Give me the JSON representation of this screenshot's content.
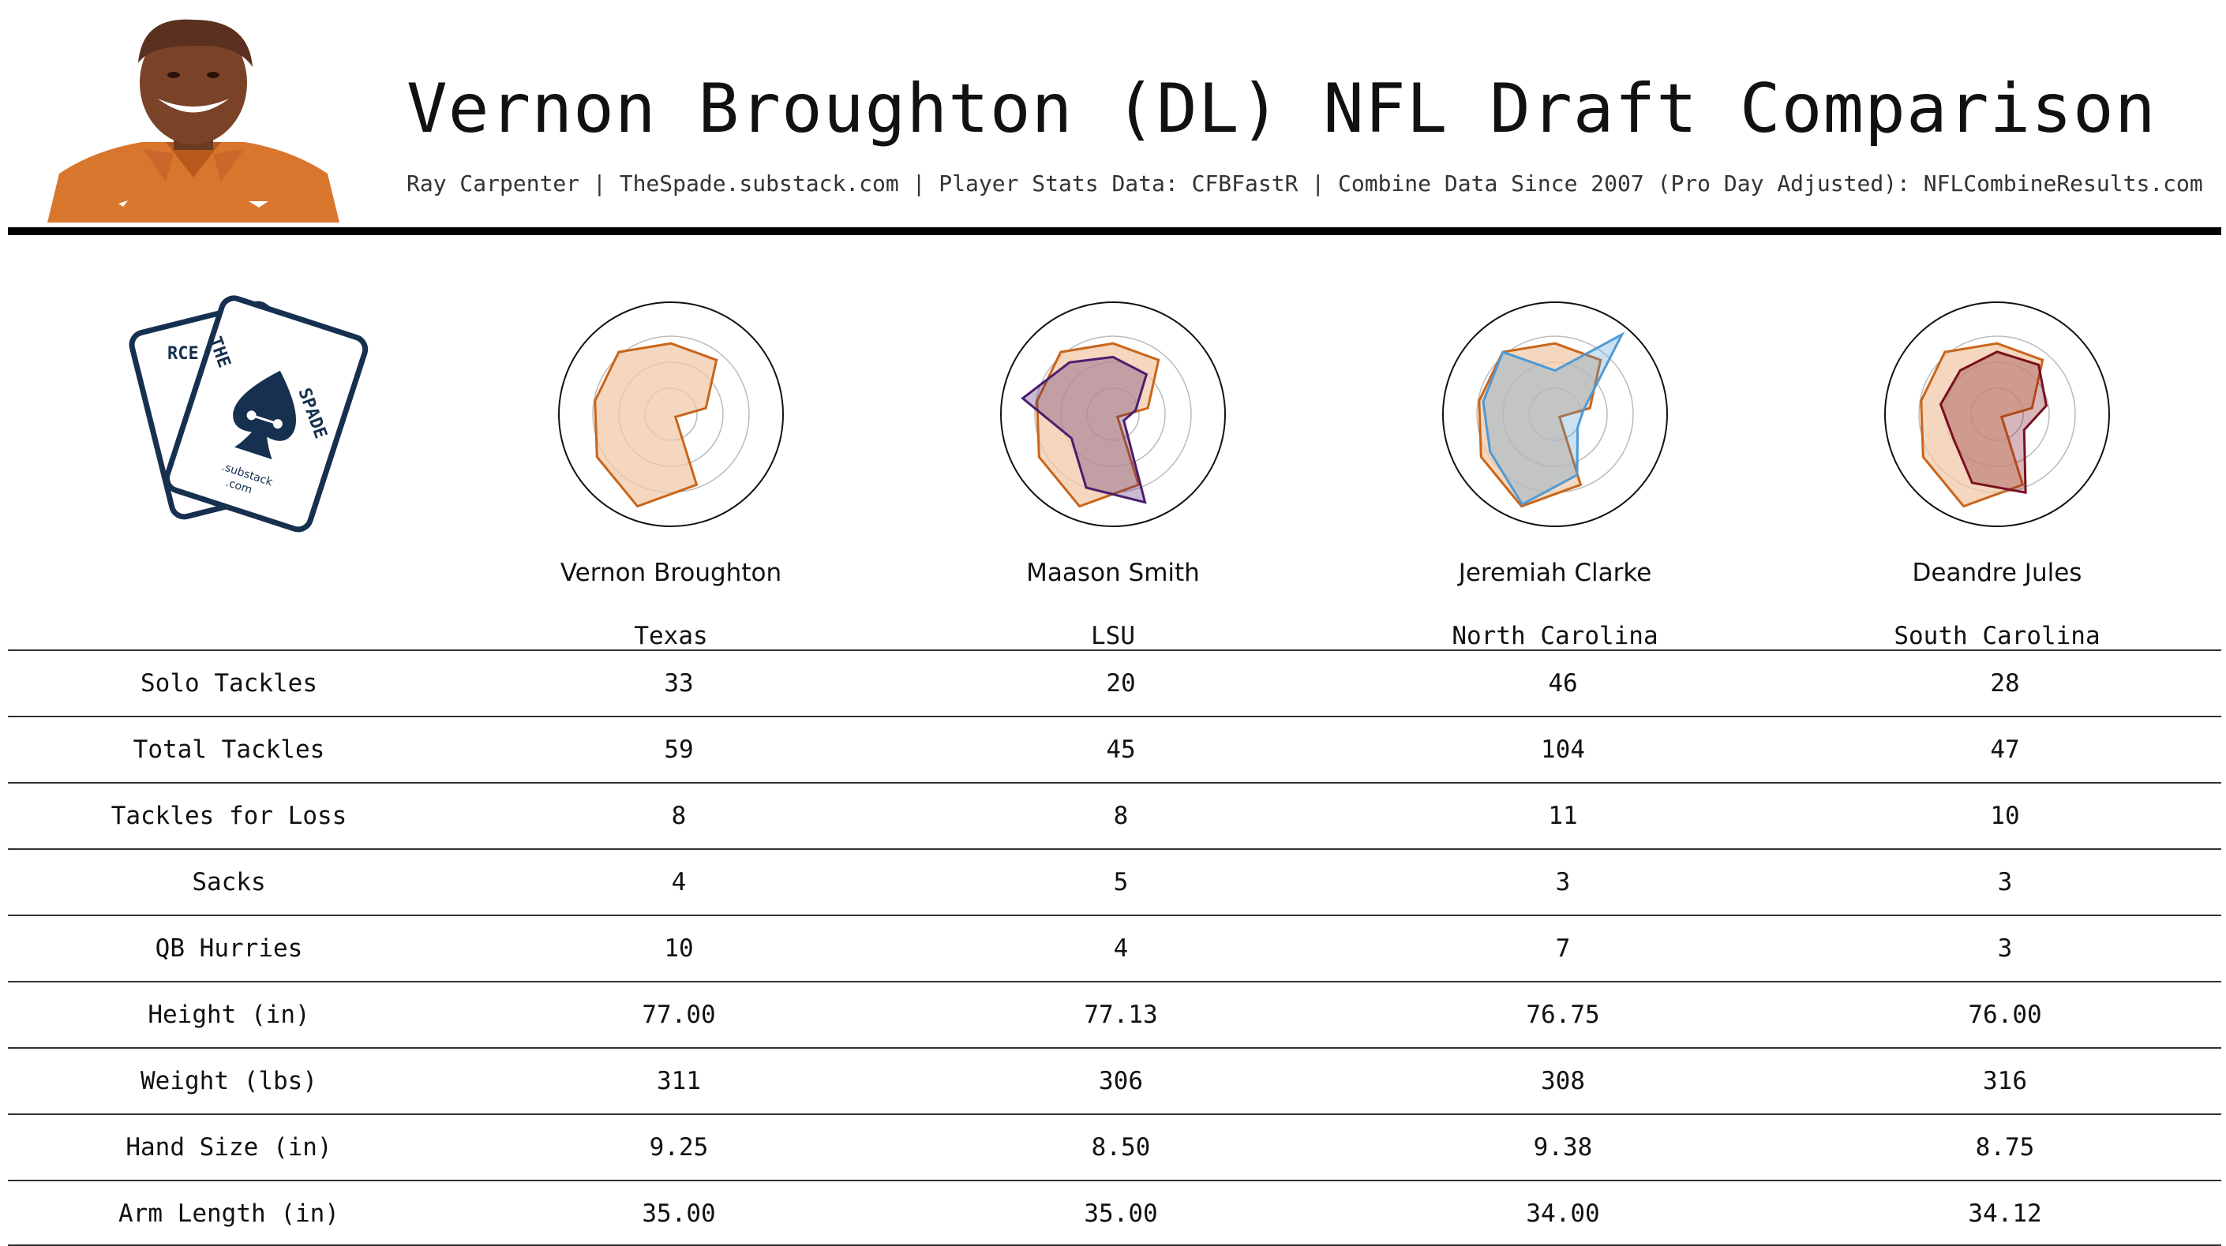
{
  "header": {
    "title": "Vernon Broughton (DL) NFL Draft Comparison",
    "subtitle": "Ray Carpenter | TheSpade.substack.com | Player Stats Data: CFBFastR | Combine Data Since 2007 (Pro Day Adjusted): NFLCombineResults.com",
    "photo_icon": "player-headshot",
    "logo_icon": "the-spade-playing-cards-logo"
  },
  "logo": {
    "text_left": "RCE",
    "text_top": "THE",
    "text_right": "SPADE",
    "text_small": ".substack",
    "text_com": ".com"
  },
  "colors": {
    "base": "#c8651b",
    "base_fill": "#f0c9a8",
    "maason": "#4b1e6e",
    "jeremiah": "#4f9ad4",
    "deandre": "#7a1020",
    "grid": "#bbbbbb"
  },
  "players": [
    {
      "name": "Vernon Broughton",
      "school": "Texas"
    },
    {
      "name": "Maason Smith",
      "school": "LSU"
    },
    {
      "name": "Jeremiah Clarke",
      "school": "North Carolina"
    },
    {
      "name": "Deandre Jules",
      "school": "South Carolina"
    }
  ],
  "table": {
    "rows": [
      {
        "label": "Solo Tackles",
        "values": [
          "33",
          "20",
          "46",
          "28"
        ]
      },
      {
        "label": "Total Tackles",
        "values": [
          "59",
          "45",
          "104",
          "47"
        ]
      },
      {
        "label": "Tackles for Loss",
        "values": [
          "8",
          "8",
          "11",
          "10"
        ]
      },
      {
        "label": "Sacks",
        "values": [
          "4",
          "5",
          "3",
          "3"
        ]
      },
      {
        "label": "QB Hurries",
        "values": [
          "10",
          "4",
          "7",
          "3"
        ]
      },
      {
        "label": "Height (in)",
        "values": [
          "77.00",
          "77.13",
          "76.75",
          "76.00"
        ]
      },
      {
        "label": "Weight (lbs)",
        "values": [
          "311",
          "306",
          "308",
          "316"
        ]
      },
      {
        "label": "Hand Size (in)",
        "values": [
          "9.25",
          "8.50",
          "9.38",
          "8.75"
        ]
      },
      {
        "label": "Arm Length (in)",
        "values": [
          "35.00",
          "35.00",
          "34.00",
          "34.12"
        ]
      }
    ]
  },
  "radar_data": {
    "axes": 9,
    "base": [
      0.68,
      0.68,
      0.34,
      0.05,
      0.72,
      0.94,
      0.82,
      0.74,
      0.78
    ],
    "comparisons": [
      [
        0.55,
        0.5,
        0.22,
        0.12,
        0.9,
        0.75,
        0.46,
        0.88,
        0.65
      ],
      [
        0.42,
        1.0,
        0.28,
        0.25,
        0.62,
        0.92,
        0.72,
        0.7,
        0.78
      ],
      [
        0.6,
        0.62,
        0.48,
        0.3,
        0.8,
        0.7,
        0.48,
        0.55,
        0.55
      ]
    ]
  }
}
